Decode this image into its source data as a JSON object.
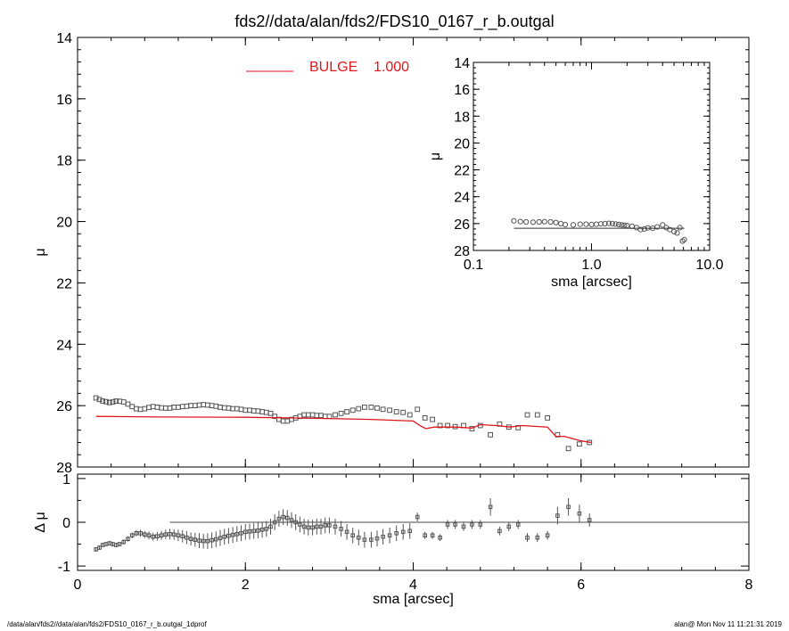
{
  "title": "fds2//data/alan/fds2/FDS10_0167_r_b.outgal",
  "footer_left": "/data/alan/fds2//data/alan/fds2/FDS10_0167_r_b.outgal_1dprof",
  "footer_right": "alan@  Mon Nov 11 11:21:31 2019",
  "colors": {
    "model": "#e0161c",
    "data": "#555555",
    "axes": "#000000"
  },
  "chart_data": [
    {
      "id": "main",
      "type": "scatter",
      "xlabel": "sma [arcsec]",
      "ylabel": "μ",
      "xlim": [
        0,
        8
      ],
      "ylim": [
        28,
        14
      ],
      "y_inverted": true,
      "xticks": [
        0,
        2,
        4,
        6,
        8
      ],
      "yticks": [
        14,
        16,
        18,
        20,
        22,
        24,
        26,
        28
      ],
      "legend": {
        "label": "BULGE",
        "value": "1.000",
        "placement": "top-center"
      },
      "data_points": {
        "x": [
          0.22,
          0.26,
          0.3,
          0.34,
          0.38,
          0.42,
          0.46,
          0.5,
          0.55,
          0.6,
          0.65,
          0.7,
          0.75,
          0.8,
          0.85,
          0.9,
          0.95,
          1.0,
          1.05,
          1.1,
          1.15,
          1.2,
          1.25,
          1.3,
          1.35,
          1.4,
          1.45,
          1.5,
          1.55,
          1.6,
          1.65,
          1.7,
          1.75,
          1.8,
          1.85,
          1.9,
          1.95,
          2.0,
          2.05,
          2.1,
          2.15,
          2.2,
          2.25,
          2.3,
          2.35,
          2.4,
          2.45,
          2.5,
          2.55,
          2.6,
          2.65,
          2.7,
          2.75,
          2.8,
          2.85,
          2.9,
          2.95,
          3.0,
          3.07,
          3.14,
          3.21,
          3.28,
          3.35,
          3.42,
          3.5,
          3.57,
          3.64,
          3.72,
          3.8,
          3.88,
          3.96,
          4.05,
          4.14,
          4.23,
          4.32,
          4.41,
          4.5,
          4.6,
          4.7,
          4.8,
          4.92,
          5.03,
          5.14,
          5.25,
          5.36,
          5.48,
          5.6,
          5.72,
          5.85,
          5.98,
          6.1
        ],
        "y": [
          25.75,
          25.8,
          25.85,
          25.87,
          25.9,
          25.88,
          25.85,
          25.86,
          25.88,
          25.95,
          26.03,
          26.1,
          26.12,
          26.1,
          26.06,
          26.03,
          26.05,
          26.07,
          26.08,
          26.08,
          26.05,
          26.05,
          26.03,
          26.02,
          26.0,
          26.0,
          25.98,
          25.97,
          25.98,
          26.0,
          26.02,
          26.05,
          26.07,
          26.08,
          26.1,
          26.1,
          26.12,
          26.15,
          26.15,
          26.17,
          26.18,
          26.2,
          26.22,
          26.25,
          26.35,
          26.45,
          26.5,
          26.5,
          26.45,
          26.4,
          26.35,
          26.3,
          26.3,
          26.3,
          26.32,
          26.32,
          26.35,
          26.35,
          26.3,
          26.25,
          26.2,
          26.15,
          26.1,
          26.05,
          26.05,
          26.08,
          26.12,
          26.15,
          26.2,
          26.22,
          26.3,
          26.12,
          26.4,
          26.45,
          26.65,
          26.65,
          26.68,
          26.65,
          26.75,
          26.65,
          26.95,
          26.6,
          26.7,
          26.72,
          26.3,
          26.3,
          26.4,
          26.95,
          27.4,
          27.25,
          27.2
        ]
      },
      "model_curve": {
        "name": "BULGE",
        "x": [
          0.22,
          1.0,
          2.0,
          2.5,
          3.0,
          3.5,
          4.0,
          4.08,
          4.15,
          4.25,
          4.5,
          4.7,
          4.8,
          5.0,
          5.15,
          5.3,
          5.6,
          5.7,
          5.8,
          6.0,
          6.12
        ],
        "y": [
          26.35,
          26.37,
          26.38,
          26.4,
          26.42,
          26.45,
          26.5,
          26.65,
          26.75,
          26.7,
          26.7,
          26.73,
          26.62,
          26.65,
          26.7,
          26.65,
          26.7,
          27.0,
          27.0,
          27.15,
          27.2
        ]
      }
    },
    {
      "id": "inset",
      "type": "scatter",
      "xlabel": "sma [arcsec]",
      "ylabel": "μ",
      "xscale": "log",
      "xlim": [
        0.1,
        10
      ],
      "ylim": [
        28,
        14
      ],
      "y_inverted": true,
      "xticks": [
        0.1,
        1.0,
        10.0
      ],
      "xtick_labels": [
        "0.1",
        "1.0",
        "10.0"
      ],
      "yticks": [
        14,
        16,
        18,
        20,
        22,
        24,
        26,
        28
      ],
      "data_points": {
        "x": [
          0.22,
          0.25,
          0.28,
          0.32,
          0.36,
          0.4,
          0.45,
          0.5,
          0.55,
          0.6,
          0.7,
          0.8,
          0.9,
          1.0,
          1.1,
          1.2,
          1.3,
          1.4,
          1.5,
          1.6,
          1.7,
          1.8,
          1.9,
          2.0,
          2.2,
          2.4,
          2.6,
          2.8,
          3.0,
          3.3,
          3.6,
          4.0,
          4.3,
          4.6,
          5.0,
          5.3,
          5.6,
          5.9,
          6.1
        ],
        "y": [
          25.8,
          25.85,
          25.88,
          25.9,
          25.88,
          25.86,
          25.88,
          25.92,
          26.0,
          26.08,
          26.1,
          26.05,
          26.05,
          26.07,
          26.05,
          26.02,
          26.0,
          25.98,
          26.0,
          26.03,
          26.07,
          26.1,
          26.12,
          26.15,
          26.2,
          26.3,
          26.45,
          26.4,
          26.32,
          26.35,
          26.25,
          26.1,
          26.3,
          26.45,
          26.6,
          26.7,
          26.3,
          27.3,
          27.2
        ]
      },
      "model_curve": {
        "x": [
          0.22,
          6.1
        ],
        "y": [
          26.35,
          26.35
        ]
      }
    },
    {
      "id": "residual",
      "type": "scatter",
      "xlabel": "sma [arcsec]",
      "ylabel": "Δ μ",
      "xlim": [
        0,
        8
      ],
      "ylim": [
        -1.1,
        1.1
      ],
      "xticks": [
        0,
        2,
        4,
        6,
        8
      ],
      "xtick_labels": [
        "0",
        "2",
        "4",
        "6",
        "8"
      ],
      "yticks": [
        -1,
        0,
        1
      ],
      "yticks_minor": [
        -0.5,
        0.5
      ],
      "zero_line_from": 1.1,
      "data_points": {
        "x": [
          0.22,
          0.26,
          0.3,
          0.34,
          0.38,
          0.42,
          0.46,
          0.5,
          0.55,
          0.6,
          0.65,
          0.7,
          0.75,
          0.8,
          0.85,
          0.9,
          0.95,
          1.0,
          1.05,
          1.1,
          1.15,
          1.2,
          1.25,
          1.3,
          1.35,
          1.4,
          1.45,
          1.5,
          1.55,
          1.6,
          1.65,
          1.7,
          1.75,
          1.8,
          1.85,
          1.9,
          1.95,
          2.0,
          2.05,
          2.1,
          2.15,
          2.2,
          2.25,
          2.3,
          2.35,
          2.4,
          2.45,
          2.5,
          2.55,
          2.6,
          2.65,
          2.7,
          2.75,
          2.8,
          2.85,
          2.9,
          2.95,
          3.0,
          3.07,
          3.14,
          3.21,
          3.28,
          3.35,
          3.42,
          3.5,
          3.57,
          3.64,
          3.72,
          3.8,
          3.88,
          3.96,
          4.05,
          4.14,
          4.23,
          4.32,
          4.41,
          4.5,
          4.6,
          4.7,
          4.8,
          4.92,
          5.03,
          5.14,
          5.25,
          5.36,
          5.48,
          5.6,
          5.72,
          5.85,
          5.98,
          6.1
        ],
        "y": [
          -0.62,
          -0.58,
          -0.52,
          -0.5,
          -0.48,
          -0.5,
          -0.52,
          -0.5,
          -0.45,
          -0.38,
          -0.3,
          -0.25,
          -0.25,
          -0.28,
          -0.3,
          -0.33,
          -0.32,
          -0.3,
          -0.28,
          -0.27,
          -0.28,
          -0.3,
          -0.32,
          -0.35,
          -0.38,
          -0.4,
          -0.42,
          -0.43,
          -0.43,
          -0.41,
          -0.39,
          -0.36,
          -0.33,
          -0.31,
          -0.29,
          -0.27,
          -0.25,
          -0.22,
          -0.21,
          -0.2,
          -0.19,
          -0.17,
          -0.15,
          -0.1,
          0.0,
          0.08,
          0.12,
          0.1,
          0.05,
          0.0,
          -0.05,
          -0.1,
          -0.12,
          -0.12,
          -0.1,
          -0.1,
          -0.07,
          -0.07,
          -0.1,
          -0.15,
          -0.22,
          -0.3,
          -0.35,
          -0.4,
          -0.4,
          -0.37,
          -0.33,
          -0.3,
          -0.25,
          -0.22,
          -0.2,
          0.12,
          -0.3,
          -0.3,
          -0.35,
          -0.05,
          -0.05,
          -0.1,
          -0.05,
          -0.05,
          0.35,
          -0.2,
          -0.1,
          -0.05,
          -0.35,
          -0.35,
          -0.3,
          0.15,
          0.35,
          0.2,
          0.05
        ]
      },
      "error_half_widths": [
        0.05,
        0.05,
        0.05,
        0.05,
        0.05,
        0.05,
        0.05,
        0.05,
        0.06,
        0.06,
        0.07,
        0.07,
        0.08,
        0.08,
        0.09,
        0.09,
        0.1,
        0.1,
        0.11,
        0.12,
        0.12,
        0.13,
        0.14,
        0.15,
        0.15,
        0.16,
        0.17,
        0.17,
        0.18,
        0.18,
        0.18,
        0.18,
        0.18,
        0.18,
        0.18,
        0.18,
        0.18,
        0.18,
        0.18,
        0.18,
        0.18,
        0.18,
        0.18,
        0.18,
        0.18,
        0.18,
        0.18,
        0.18,
        0.18,
        0.18,
        0.18,
        0.18,
        0.18,
        0.18,
        0.18,
        0.18,
        0.18,
        0.18,
        0.18,
        0.18,
        0.18,
        0.18,
        0.18,
        0.18,
        0.18,
        0.18,
        0.18,
        0.18,
        0.18,
        0.18,
        0.18,
        0.1,
        0.08,
        0.08,
        0.08,
        0.1,
        0.1,
        0.1,
        0.1,
        0.1,
        0.2,
        0.1,
        0.1,
        0.1,
        0.1,
        0.1,
        0.1,
        0.2,
        0.2,
        0.2,
        0.15
      ]
    }
  ]
}
